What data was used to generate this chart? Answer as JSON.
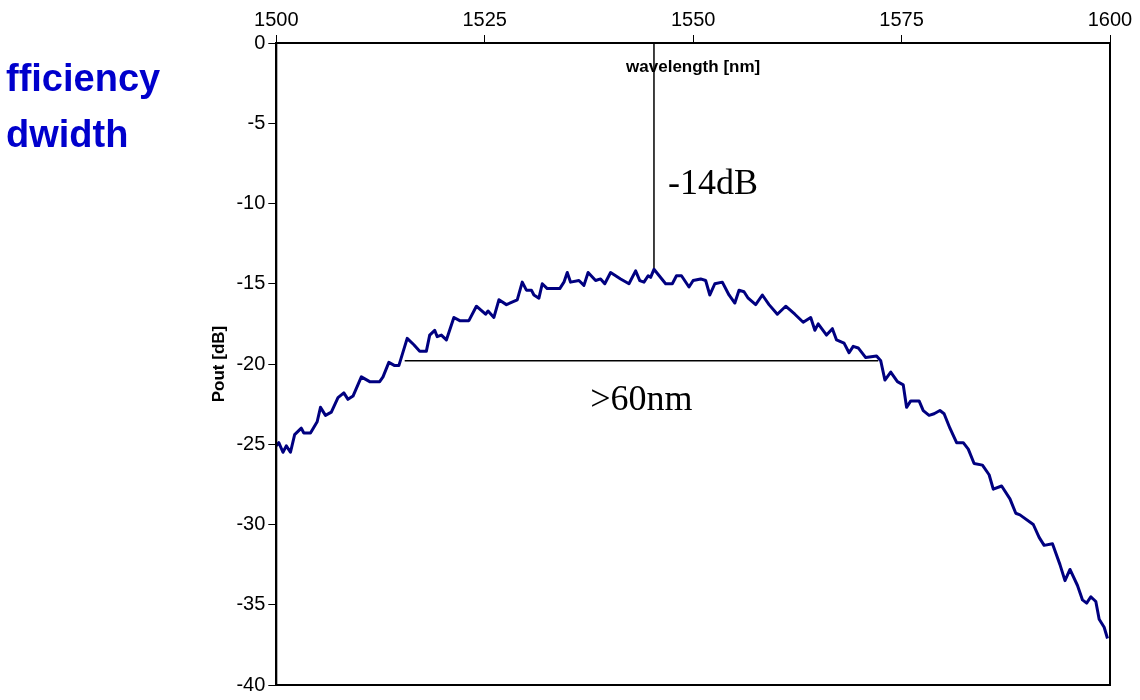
{
  "chart_data": {
    "type": "line",
    "xlabel": "wavelength [nm]",
    "ylabel": "Pout [dB]",
    "xlim": [
      1500,
      1600
    ],
    "xticks": [
      1500,
      1525,
      1550,
      1575,
      1600
    ],
    "ylim": [
      -40,
      0
    ],
    "yticks": [
      -40,
      -35,
      -30,
      -25,
      -20,
      -15,
      -10,
      -5,
      0
    ],
    "grid": false,
    "legend": false,
    "marker": "none",
    "line_style": "solid",
    "annotations": [
      "fficiency",
      "dwidth",
      {
        "text": "-14dB",
        "x": 1545.3,
        "y": -14.1
      },
      {
        "text": ">60nm",
        "x": 1543.8,
        "y": -19.8
      }
    ],
    "series": [
      {
        "color": "#000080",
        "x": [
          1500.0,
          1500.3,
          1500.8,
          1501.2,
          1501.7,
          1502.2,
          1503.0,
          1503.3,
          1504.1,
          1504.9,
          1505.3,
          1505.9,
          1506.6,
          1507.4,
          1508.1,
          1508.6,
          1509.2,
          1510.2,
          1511.2,
          1512.4,
          1512.8,
          1513.5,
          1514.2,
          1514.7,
          1515.7,
          1516.5,
          1517.2,
          1518.0,
          1518.4,
          1519.0,
          1519.3,
          1519.8,
          1520.4,
          1521.3,
          1522.0,
          1523.1,
          1524.0,
          1525.1,
          1525.4,
          1526.1,
          1526.7,
          1527.6,
          1528.9,
          1529.5,
          1530.0,
          1530.6,
          1530.9,
          1531.5,
          1531.9,
          1532.5,
          1534.0,
          1534.5,
          1534.9,
          1535.3,
          1536.3,
          1536.9,
          1537.4,
          1538.3,
          1538.9,
          1539.4,
          1540.1,
          1541.3,
          1542.3,
          1543.1,
          1543.6,
          1544.1,
          1544.6,
          1544.9,
          1545.3,
          1546.7,
          1547.5,
          1548.0,
          1548.6,
          1549.5,
          1550.0,
          1550.9,
          1551.5,
          1552.0,
          1552.6,
          1553.5,
          1554.3,
          1555.0,
          1555.5,
          1556.1,
          1556.6,
          1557.5,
          1558.3,
          1559.1,
          1560.1,
          1561.1,
          1562.2,
          1563.2,
          1564.1,
          1564.6,
          1565.0,
          1566.0,
          1566.7,
          1567.2,
          1568.1,
          1568.7,
          1569.2,
          1569.8,
          1570.7,
          1572.0,
          1572.5,
          1573.0,
          1573.7,
          1574.5,
          1575.2,
          1575.6,
          1576.1,
          1577.1,
          1577.6,
          1578.3,
          1578.9,
          1579.6,
          1580.1,
          1580.8,
          1581.6,
          1582.4,
          1583.0,
          1583.7,
          1584.7,
          1585.5,
          1586.0,
          1587.0,
          1588.0,
          1588.7,
          1589.2,
          1590.8,
          1591.5,
          1592.1,
          1593.1,
          1594.0,
          1594.6,
          1595.2,
          1596.1,
          1596.7,
          1597.2,
          1597.7,
          1598.3,
          1598.7,
          1599.3,
          1599.7
        ],
        "values": [
          -25.1,
          -24.9,
          -25.5,
          -25.1,
          -25.5,
          -24.4,
          -24.0,
          -24.3,
          -24.3,
          -23.6,
          -22.7,
          -23.2,
          -23.0,
          -22.1,
          -21.8,
          -22.2,
          -22.0,
          -20.8,
          -21.1,
          -21.1,
          -20.8,
          -19.9,
          -20.1,
          -20.1,
          -18.4,
          -18.8,
          -19.2,
          -19.2,
          -18.2,
          -17.9,
          -18.3,
          -18.2,
          -18.5,
          -17.1,
          -17.3,
          -17.3,
          -16.4,
          -16.9,
          -16.7,
          -17.1,
          -16.0,
          -16.3,
          -16.0,
          -14.9,
          -15.4,
          -15.4,
          -15.7,
          -15.9,
          -15.0,
          -15.3,
          -15.3,
          -14.9,
          -14.3,
          -14.9,
          -14.8,
          -15.1,
          -14.3,
          -14.8,
          -14.7,
          -15.0,
          -14.3,
          -14.7,
          -15.0,
          -14.2,
          -14.8,
          -14.9,
          -14.5,
          -14.6,
          -14.1,
          -15.0,
          -15.0,
          -14.5,
          -14.5,
          -15.2,
          -14.8,
          -14.7,
          -14.8,
          -15.7,
          -15.0,
          -14.9,
          -15.7,
          -16.2,
          -15.4,
          -15.5,
          -15.9,
          -16.3,
          -15.7,
          -16.3,
          -16.9,
          -16.4,
          -16.9,
          -17.4,
          -17.1,
          -17.9,
          -17.5,
          -18.2,
          -17.8,
          -18.5,
          -18.7,
          -19.3,
          -18.9,
          -19.0,
          -19.6,
          -19.5,
          -19.8,
          -21.0,
          -20.5,
          -21.1,
          -21.3,
          -22.7,
          -22.3,
          -22.3,
          -22.9,
          -23.2,
          -23.1,
          -22.9,
          -23.1,
          -24.0,
          -24.9,
          -24.9,
          -25.3,
          -26.2,
          -26.3,
          -26.9,
          -27.8,
          -27.6,
          -28.4,
          -29.3,
          -29.4,
          -30.0,
          -30.8,
          -31.3,
          -31.2,
          -32.5,
          -33.5,
          -32.8,
          -33.8,
          -34.7,
          -34.9,
          -34.5,
          -34.8,
          -35.9,
          -36.4,
          -37.1
        ]
      },
      {
        "color": "#000000",
        "x": [
          1545.3,
          1545.3
        ],
        "values": [
          -14.1,
          0
        ]
      },
      {
        "color": "#000000",
        "x": [
          1515.4,
          1572.2
        ],
        "values": [
          -19.8,
          -19.8
        ]
      }
    ]
  }
}
